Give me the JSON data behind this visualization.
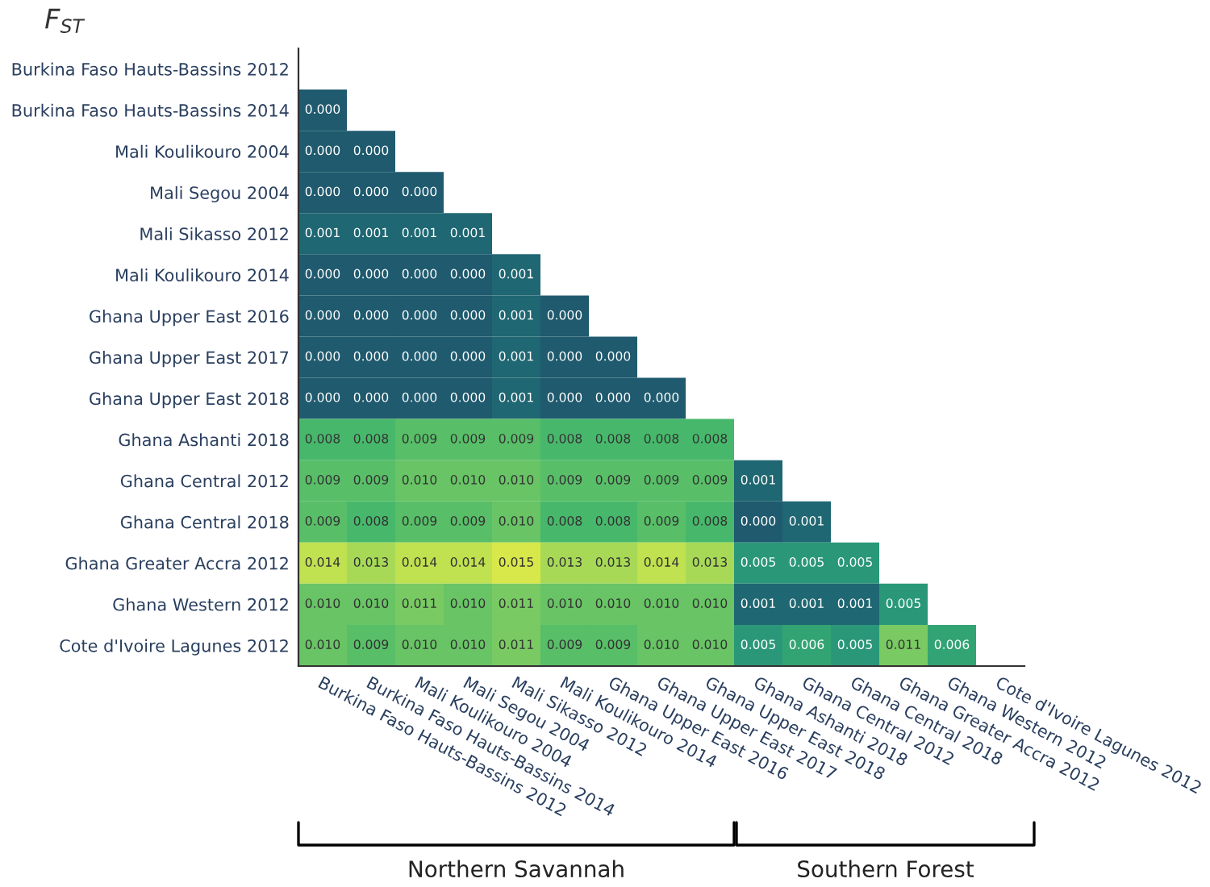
{
  "chart_data": {
    "type": "heatmap",
    "title": "F$_{ST}$",
    "categories": [
      "Burkina Faso Hauts-Bassins 2012",
      "Burkina Faso Hauts-Bassins 2014",
      "Mali Koulikouro 2004",
      "Mali Segou 2004",
      "Mali Sikasso 2012",
      "Mali Koulikouro 2014",
      "Ghana Upper East 2016",
      "Ghana Upper East 2017",
      "Ghana Upper East 2018",
      "Ghana Ashanti 2018",
      "Ghana Central 2012",
      "Ghana Central 2018",
      "Ghana Greater Accra 2012",
      "Ghana Western 2012",
      "Cote d'Ivoire Lagunes 2012"
    ],
    "y_categories": [
      "Burkina Faso Hauts-Bassins 2012",
      "Burkina Faso Hauts-Bassins 2014",
      "Mali Koulikouro 2004",
      "Mali Segou 2004",
      "Mali Sikasso 2012",
      "Mali Koulikouro 2014",
      "Ghana Upper East 2016",
      "Ghana Upper East 2017",
      "Ghana Upper East 2018",
      "Ghana Ashanti 2018",
      "Ghana Central 2012",
      "Ghana Central 2018",
      "Ghana Greater Accra 2012",
      "Ghana Western 2012",
      "Cote d'Ivoire Lagunes 2012"
    ],
    "cells": [
      [
        null,
        null,
        null,
        null,
        null,
        null,
        null,
        null,
        null,
        null,
        null,
        null,
        null,
        null,
        null
      ],
      [
        0.0,
        null,
        null,
        null,
        null,
        null,
        null,
        null,
        null,
        null,
        null,
        null,
        null,
        null,
        null
      ],
      [
        0.0,
        0.0,
        null,
        null,
        null,
        null,
        null,
        null,
        null,
        null,
        null,
        null,
        null,
        null,
        null
      ],
      [
        0.0,
        0.0,
        0.0,
        null,
        null,
        null,
        null,
        null,
        null,
        null,
        null,
        null,
        null,
        null,
        null
      ],
      [
        0.001,
        0.001,
        0.001,
        0.001,
        null,
        null,
        null,
        null,
        null,
        null,
        null,
        null,
        null,
        null,
        null
      ],
      [
        0.0,
        0.0,
        0.0,
        0.0,
        0.001,
        null,
        null,
        null,
        null,
        null,
        null,
        null,
        null,
        null,
        null
      ],
      [
        0.0,
        0.0,
        0.0,
        0.0,
        0.001,
        0.0,
        null,
        null,
        null,
        null,
        null,
        null,
        null,
        null,
        null
      ],
      [
        0.0,
        0.0,
        0.0,
        0.0,
        0.001,
        0.0,
        0.0,
        null,
        null,
        null,
        null,
        null,
        null,
        null,
        null
      ],
      [
        0.0,
        0.0,
        0.0,
        0.0,
        0.001,
        0.0,
        0.0,
        0.0,
        null,
        null,
        null,
        null,
        null,
        null,
        null
      ],
      [
        0.008,
        0.008,
        0.009,
        0.009,
        0.009,
        0.008,
        0.008,
        0.008,
        0.008,
        null,
        null,
        null,
        null,
        null,
        null
      ],
      [
        0.009,
        0.009,
        0.01,
        0.01,
        0.01,
        0.009,
        0.009,
        0.009,
        0.009,
        0.001,
        null,
        null,
        null,
        null,
        null
      ],
      [
        0.009,
        0.008,
        0.009,
        0.009,
        0.01,
        0.008,
        0.008,
        0.009,
        0.008,
        0.0,
        0.001,
        null,
        null,
        null,
        null
      ],
      [
        0.014,
        0.013,
        0.014,
        0.014,
        0.015,
        0.013,
        0.013,
        0.014,
        0.013,
        0.005,
        0.005,
        0.005,
        null,
        null,
        null
      ],
      [
        0.01,
        0.01,
        0.011,
        0.01,
        0.011,
        0.01,
        0.01,
        0.01,
        0.01,
        0.001,
        0.001,
        0.001,
        0.005,
        null,
        null
      ],
      [
        0.01,
        0.009,
        0.01,
        0.01,
        0.011,
        0.009,
        0.009,
        0.01,
        0.01,
        0.005,
        0.006,
        0.005,
        0.011,
        0.006,
        null
      ]
    ],
    "data_labels": true,
    "cell_labels": [
      [
        null,
        null,
        null,
        null,
        null,
        null,
        null,
        null,
        null,
        null,
        null,
        null,
        null,
        null,
        null
      ],
      [
        "0.000",
        null,
        null,
        null,
        null,
        null,
        null,
        null,
        null,
        null,
        null,
        null,
        null,
        null,
        null
      ],
      [
        "0.000",
        "0.000",
        null,
        null,
        null,
        null,
        null,
        null,
        null,
        null,
        null,
        null,
        null,
        null,
        null
      ],
      [
        "0.000",
        "0.000",
        "0.000",
        null,
        null,
        null,
        null,
        null,
        null,
        null,
        null,
        null,
        null,
        null,
        null
      ],
      [
        "0.001",
        "0.001",
        "0.001",
        "0.001",
        null,
        null,
        null,
        null,
        null,
        null,
        null,
        null,
        null,
        null,
        null
      ],
      [
        "0.000",
        "0.000",
        "0.000",
        "0.000",
        "0.001",
        null,
        null,
        null,
        null,
        null,
        null,
        null,
        null,
        null,
        null
      ],
      [
        "0.000",
        "0.000",
        "0.000",
        "0.000",
        "0.001",
        "0.000",
        null,
        null,
        null,
        null,
        null,
        null,
        null,
        null,
        null
      ],
      [
        "0.000",
        "0.000",
        "0.000",
        "0.000",
        "0.001",
        "0.000",
        "0.000",
        null,
        null,
        null,
        null,
        null,
        null,
        null,
        null
      ],
      [
        "0.000",
        "0.000",
        "0.000",
        "0.000",
        "0.001",
        "0.000",
        "0.000",
        "0.000",
        null,
        null,
        null,
        null,
        null,
        null,
        null
      ],
      [
        "0.008",
        "0.008",
        "0.009",
        "0.009",
        "0.009",
        "0.008",
        "0.008",
        "0.008",
        "0.008",
        null,
        null,
        null,
        null,
        null,
        null
      ],
      [
        "0.009",
        "0.009",
        "0.010",
        "0.010",
        "0.010",
        "0.009",
        "0.009",
        "0.009",
        "0.009",
        "0.001",
        null,
        null,
        null,
        null,
        null
      ],
      [
        "0.009",
        "0.008",
        "0.009",
        "0.009",
        "0.010",
        "0.008",
        "0.008",
        "0.009",
        "0.008",
        "0.000",
        "0.001",
        null,
        null,
        null,
        null
      ],
      [
        "0.014",
        "0.013",
        "0.014",
        "0.014",
        "0.015",
        "0.013",
        "0.013",
        "0.014",
        "0.013",
        "0.005",
        "0.005",
        "0.005",
        null,
        null,
        null
      ],
      [
        "0.010",
        "0.010",
        "0.011",
        "0.010",
        "0.011",
        "0.010",
        "0.010",
        "0.010",
        "0.010",
        "0.001",
        "0.001",
        "0.001",
        "0.005",
        null,
        null
      ],
      [
        "0.010",
        "0.009",
        "0.010",
        "0.010",
        "0.011",
        "0.009",
        "0.009",
        "0.010",
        "0.010",
        "0.005",
        "0.006",
        "0.005",
        "0.011",
        "0.006",
        null
      ]
    ],
    "annotations": [
      "Northern Savannah",
      "Southern Forest"
    ]
  }
}
